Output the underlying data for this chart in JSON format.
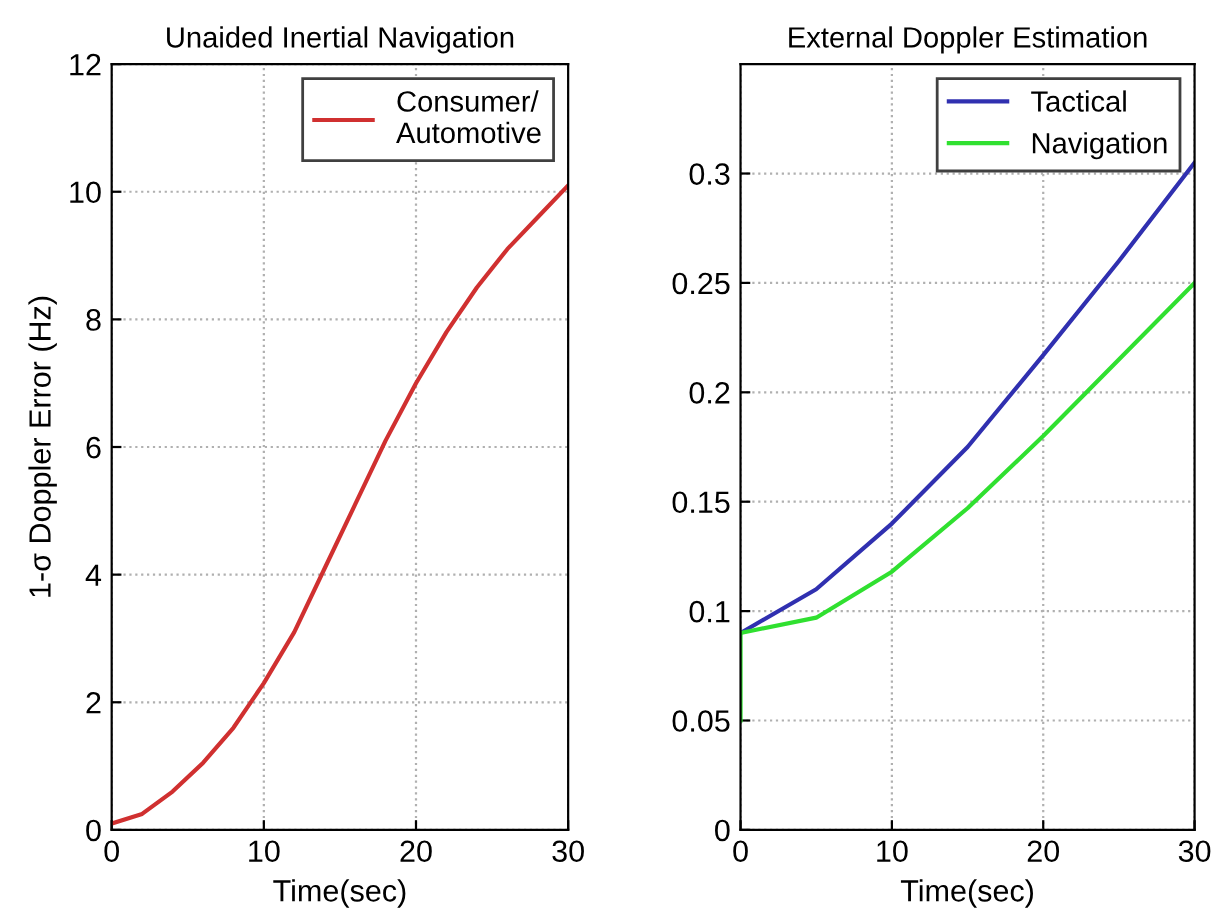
{
  "chart_data": [
    {
      "type": "line",
      "title": "Unaided Inertial Navigation",
      "xlabel": "Time(sec)",
      "ylabel": "1-σ Doppler Error (Hz)",
      "xlim": [
        0,
        30
      ],
      "xticks": [
        0,
        10,
        20,
        30
      ],
      "ylim": [
        0,
        12
      ],
      "yticks": [
        0,
        2,
        4,
        6,
        8,
        10,
        12
      ],
      "grid": true,
      "legend": "top right",
      "line_style": "solid",
      "marker": "none",
      "series": [
        {
          "name": "Consumer/\nAutomotive",
          "color": "#d03030",
          "x": [
            0,
            2,
            4,
            6,
            8,
            10,
            12,
            14,
            16,
            18,
            20,
            22,
            24,
            26,
            28,
            30
          ],
          "values": [
            0.1,
            0.25,
            0.6,
            1.05,
            1.6,
            2.3,
            3.1,
            4.1,
            5.1,
            6.1,
            7.0,
            7.8,
            8.5,
            9.1,
            9.6,
            10.1
          ]
        }
      ]
    },
    {
      "type": "line",
      "title": "External Doppler Estimation",
      "xlabel": "Time(sec)",
      "xlim": [
        0,
        30
      ],
      "xticks": [
        0,
        10,
        20,
        30
      ],
      "ylim": [
        0,
        0.35
      ],
      "yticks": [
        0,
        0.05,
        0.1,
        0.15,
        0.2,
        0.25,
        0.3
      ],
      "grid": true,
      "legend": "top right",
      "line_style": "solid",
      "marker": "none",
      "series": [
        {
          "name": "Tactical",
          "color": "#3030b0",
          "x": [
            0,
            5,
            10,
            15,
            20,
            25,
            30
          ],
          "values": [
            0.09,
            0.11,
            0.14,
            0.175,
            0.217,
            0.26,
            0.305
          ]
        },
        {
          "name": "Navigation",
          "color": "#30e030",
          "x": [
            0,
            0,
            5,
            10,
            15,
            20,
            25,
            30
          ],
          "values": [
            0.05,
            0.09,
            0.097,
            0.118,
            0.147,
            0.18,
            0.215,
            0.25
          ]
        }
      ]
    }
  ]
}
